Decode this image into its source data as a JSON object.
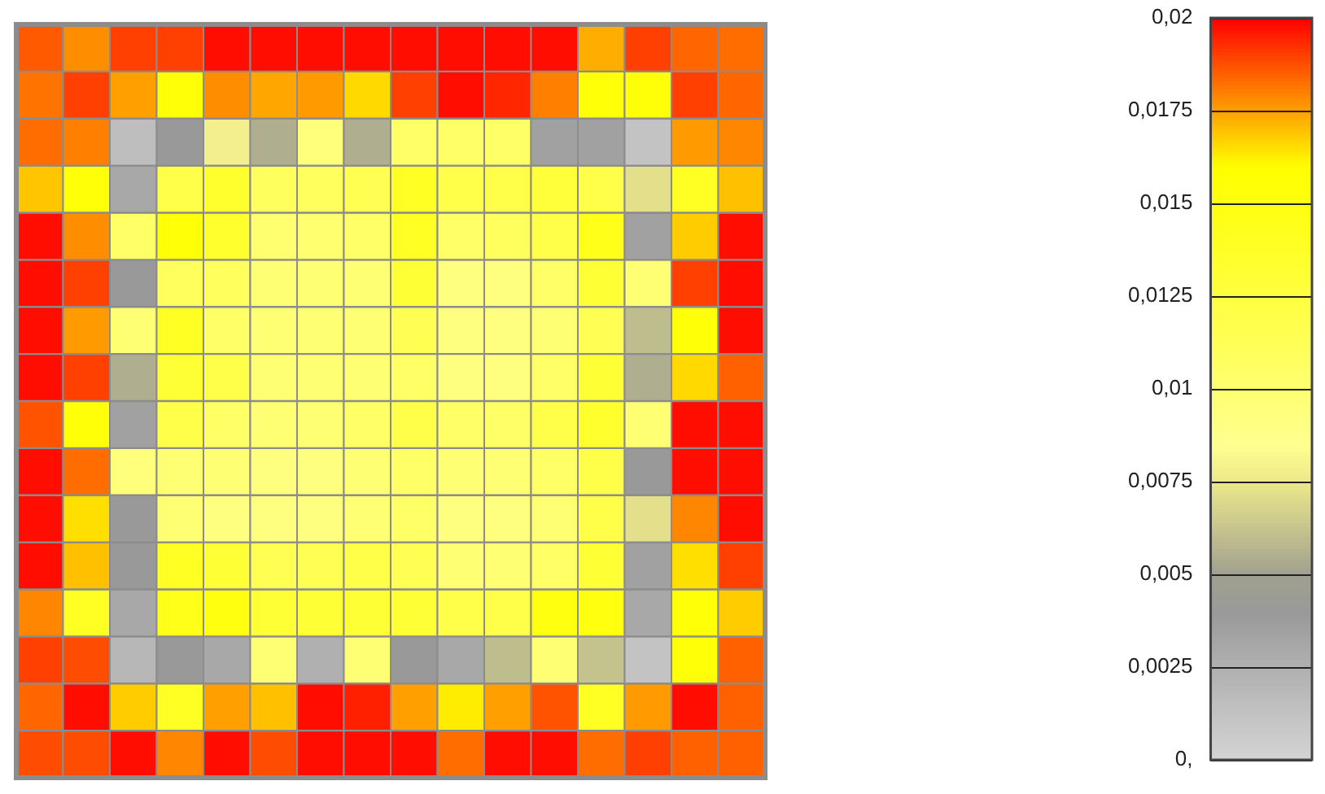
{
  "chart_data": {
    "type": "heatmap",
    "categories": [
      null,
      null,
      null,
      null,
      null,
      null,
      null,
      null,
      null,
      null,
      null,
      null,
      null,
      null,
      null,
      null
    ],
    "y_categories": [
      null,
      null,
      null,
      null,
      null,
      null,
      null,
      null,
      null,
      null,
      null,
      null,
      null,
      null,
      null,
      null
    ],
    "cells": [
      [
        0.0186,
        0.0178,
        0.019,
        0.019,
        0.0198,
        0.0198,
        0.0198,
        0.0198,
        0.0198,
        0.0198,
        0.0198,
        0.0198,
        0.0173,
        0.019,
        0.0184,
        0.0183
      ],
      [
        0.0182,
        0.019,
        0.0175,
        0.0155,
        0.0178,
        0.0174,
        0.0176,
        0.0166,
        0.019,
        0.0198,
        0.0194,
        0.018,
        0.0155,
        0.0155,
        0.019,
        0.0184
      ],
      [
        0.0183,
        0.018,
        0.0015,
        0.004,
        0.0078,
        0.0055,
        0.0095,
        0.0055,
        0.0105,
        0.0105,
        0.0105,
        0.0035,
        0.0035,
        0.0012,
        0.0176,
        0.0179
      ],
      [
        0.0169,
        0.0155,
        0.003,
        0.012,
        0.0135,
        0.011,
        0.011,
        0.0115,
        0.014,
        0.012,
        0.012,
        0.0128,
        0.012,
        0.0072,
        0.014,
        0.017
      ],
      [
        0.0198,
        0.0178,
        0.0105,
        0.0155,
        0.0135,
        0.01,
        0.01,
        0.0105,
        0.014,
        0.0105,
        0.011,
        0.012,
        0.0145,
        0.0035,
        0.0168,
        0.0198
      ],
      [
        0.0198,
        0.019,
        0.004,
        0.011,
        0.011,
        0.0098,
        0.0098,
        0.0098,
        0.013,
        0.0093,
        0.0093,
        0.0105,
        0.013,
        0.0098,
        0.019,
        0.0198
      ],
      [
        0.0198,
        0.0176,
        0.0098,
        0.014,
        0.0105,
        0.0098,
        0.0098,
        0.0098,
        0.0115,
        0.0093,
        0.0093,
        0.0098,
        0.0115,
        0.006,
        0.0155,
        0.0198
      ],
      [
        0.0198,
        0.019,
        0.0055,
        0.013,
        0.012,
        0.0098,
        0.0098,
        0.0098,
        0.0105,
        0.0093,
        0.0093,
        0.0105,
        0.013,
        0.0055,
        0.0166,
        0.0185
      ],
      [
        0.0187,
        0.0155,
        0.0035,
        0.012,
        0.0105,
        0.0098,
        0.0098,
        0.0105,
        0.012,
        0.0105,
        0.0105,
        0.012,
        0.0135,
        0.0098,
        0.0198,
        0.0198
      ],
      [
        0.0198,
        0.0183,
        0.0095,
        0.0098,
        0.0098,
        0.0093,
        0.0093,
        0.0098,
        0.0105,
        0.0098,
        0.0098,
        0.0105,
        0.012,
        0.004,
        0.0198,
        0.0198
      ],
      [
        0.0198,
        0.0165,
        0.004,
        0.0098,
        0.0093,
        0.0093,
        0.0093,
        0.0098,
        0.0105,
        0.0093,
        0.0093,
        0.0098,
        0.012,
        0.0072,
        0.0179,
        0.0198
      ],
      [
        0.0198,
        0.017,
        0.004,
        0.014,
        0.013,
        0.0115,
        0.0115,
        0.012,
        0.0115,
        0.0098,
        0.0098,
        0.0105,
        0.013,
        0.0035,
        0.0165,
        0.019
      ],
      [
        0.0179,
        0.014,
        0.003,
        0.0145,
        0.015,
        0.013,
        0.013,
        0.013,
        0.013,
        0.012,
        0.012,
        0.015,
        0.015,
        0.003,
        0.0155,
        0.0168
      ],
      [
        0.019,
        0.0188,
        0.002,
        0.004,
        0.003,
        0.0098,
        0.0025,
        0.0098,
        0.004,
        0.003,
        0.006,
        0.0098,
        0.0062,
        0.0012,
        0.0155,
        0.0185
      ],
      [
        0.0184,
        0.0198,
        0.0168,
        0.014,
        0.0175,
        0.017,
        0.0198,
        0.0195,
        0.0175,
        0.0163,
        0.0175,
        0.0187,
        0.014,
        0.0176,
        0.0198,
        0.0185
      ],
      [
        0.0188,
        0.0188,
        0.0198,
        0.0179,
        0.0198,
        0.0188,
        0.0198,
        0.0198,
        0.0198,
        0.0183,
        0.0198,
        0.0198,
        0.0183,
        0.019,
        0.0185,
        0.0185
      ]
    ],
    "clim": [
      0,
      0.02
    ],
    "cticks": [
      {
        "value": 0,
        "label": "0,"
      },
      {
        "value": 0.0025,
        "label": "0,0025"
      },
      {
        "value": 0.005,
        "label": "0,005"
      },
      {
        "value": 0.0075,
        "label": "0,0075"
      },
      {
        "value": 0.01,
        "label": "0,01"
      },
      {
        "value": 0.0125,
        "label": "0,0125"
      },
      {
        "value": 0.015,
        "label": "0,015"
      },
      {
        "value": 0.0175,
        "label": "0,0175"
      },
      {
        "value": 0.02,
        "label": "0,02"
      }
    ],
    "tick_labels": false
  }
}
